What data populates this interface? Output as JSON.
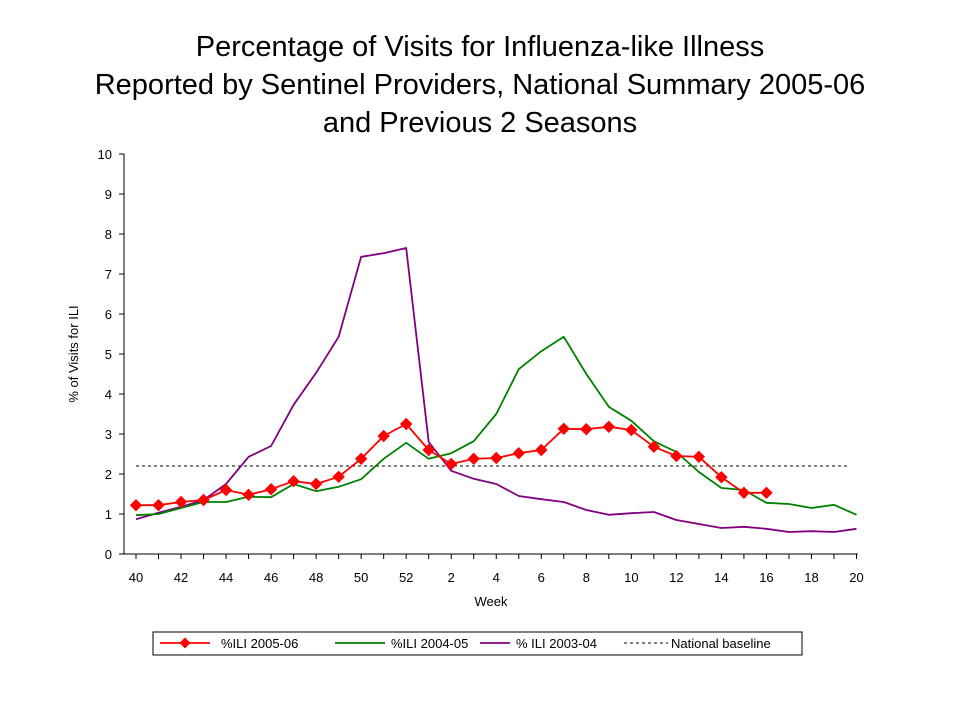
{
  "chart_data": {
    "type": "line",
    "title_lines": [
      "Percentage of Visits for Influenza-like Illness",
      "Reported by Sentinel Providers, National Summary 2005-06",
      "and Previous 2 Seasons"
    ],
    "xlabel": "Week",
    "ylabel": "% of Visits for ILI",
    "ylim": [
      0,
      10
    ],
    "yticks": [
      0,
      1,
      2,
      3,
      4,
      5,
      6,
      7,
      8,
      9,
      10
    ],
    "weeks": [
      "40",
      "41",
      "42",
      "43",
      "44",
      "45",
      "46",
      "47",
      "48",
      "49",
      "50",
      "51",
      "52",
      "1",
      "2",
      "3",
      "4",
      "5",
      "6",
      "7",
      "8",
      "9",
      "10",
      "11",
      "12",
      "13",
      "14",
      "15",
      "16",
      "17",
      "18",
      "19",
      "20"
    ],
    "x_tick_labels": [
      "40",
      "",
      "42",
      "",
      "44",
      "",
      "46",
      "",
      "48",
      "",
      "50",
      "",
      "52",
      "",
      "2",
      "",
      "4",
      "",
      "6",
      "",
      "8",
      "",
      "10",
      "",
      "12",
      "",
      "14",
      "",
      "16",
      "",
      "18",
      "",
      "20"
    ],
    "series": [
      {
        "name": "%ILI 2005-06",
        "color": "#ff0000",
        "marker": "diamond",
        "values": [
          1.22,
          1.22,
          1.3,
          1.35,
          1.6,
          1.48,
          1.62,
          1.82,
          1.75,
          1.93,
          2.38,
          2.95,
          3.25,
          2.6,
          2.25,
          2.38,
          2.4,
          2.52,
          2.6,
          3.13,
          3.12,
          3.18,
          3.1,
          2.68,
          2.45,
          2.43,
          1.92,
          1.53,
          1.53,
          null,
          null,
          null,
          null
        ]
      },
      {
        "name": "%ILI 2004-05",
        "color": "#008000",
        "marker": "none",
        "values": [
          0.97,
          1.0,
          1.15,
          1.3,
          1.3,
          1.43,
          1.42,
          1.75,
          1.57,
          1.68,
          1.87,
          2.38,
          2.78,
          2.38,
          2.52,
          2.82,
          3.5,
          4.62,
          5.07,
          5.43,
          4.5,
          3.68,
          3.33,
          2.82,
          2.55,
          2.05,
          1.65,
          1.6,
          1.28,
          1.25,
          1.15,
          1.23,
          0.98
        ]
      },
      {
        "name": "% ILI 2003-04",
        "color": "#800080",
        "marker": "none",
        "values": [
          0.87,
          1.03,
          1.18,
          1.35,
          1.75,
          2.43,
          2.7,
          3.73,
          4.53,
          5.43,
          7.43,
          7.52,
          7.65,
          2.8,
          2.08,
          1.88,
          1.75,
          1.45,
          1.37,
          1.3,
          1.1,
          0.98,
          1.02,
          1.05,
          0.85,
          0.75,
          0.65,
          0.68,
          0.63,
          0.55,
          0.57,
          0.55,
          0.63
        ]
      }
    ],
    "baseline": {
      "name": "National baseline",
      "value": 2.2,
      "color": "#000000",
      "style": "dashed"
    },
    "legend": {
      "position": "bottom",
      "entries": [
        "%ILI 2005-06",
        "%ILI 2004-05",
        "% ILI 2003-04",
        "National baseline"
      ]
    },
    "grid": false
  }
}
